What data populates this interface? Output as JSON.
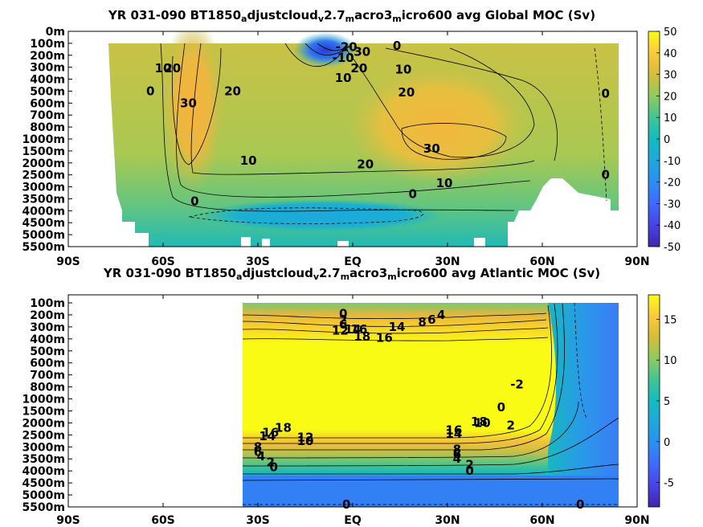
{
  "chart_data": [
    {
      "type": "heatmap",
      "title_parts": [
        "YR 031-090 BT1850",
        "a",
        "djustcloud",
        "v",
        "2.7",
        "m",
        "acro3",
        "m",
        "icro600 avg  Global MOC (Sv)"
      ],
      "x_ticks": [
        "90S",
        "60S",
        "30S",
        "EQ",
        "30N",
        "60N",
        "90N"
      ],
      "y_ticks": [
        "0m",
        "100m",
        "200m",
        "300m",
        "400m",
        "500m",
        "600m",
        "700m",
        "800m",
        "1000m",
        "1500m",
        "2000m",
        "2500m",
        "3000m",
        "3500m",
        "4000m",
        "4500m",
        "5000m",
        "5500m"
      ],
      "xlim": [
        -90,
        90
      ],
      "clim": [
        -50,
        50
      ],
      "colorbar_ticks": [
        "50",
        "40",
        "30",
        "20",
        "10",
        "0",
        "-10",
        "-20",
        "-30",
        "-40",
        "-50"
      ],
      "colormap": "parula",
      "contour_labels": [
        {
          "text": "-20",
          "lat": -2,
          "depth_index": 1.3
        },
        {
          "text": "-10",
          "lat": -3,
          "depth_index": 2.2
        },
        {
          "text": "30",
          "lat": 3,
          "depth_index": 1.7
        },
        {
          "text": "20",
          "lat": 2,
          "depth_index": 3.1
        },
        {
          "text": "10",
          "lat": -3,
          "depth_index": 3.9
        },
        {
          "text": "0",
          "lat": 14,
          "depth_index": 1.2
        },
        {
          "text": "10",
          "lat": 16,
          "depth_index": 3.2
        },
        {
          "text": "20",
          "lat": 17,
          "depth_index": 5.1
        },
        {
          "text": "0",
          "lat": 80,
          "depth_index": 5.2
        },
        {
          "text": "10",
          "lat": -60,
          "depth_index": 3.1
        },
        {
          "text": "20",
          "lat": -57,
          "depth_index": 3.1
        },
        {
          "text": "0",
          "lat": -64,
          "depth_index": 5.0
        },
        {
          "text": "30",
          "lat": -52,
          "depth_index": 6.0
        },
        {
          "text": "20",
          "lat": -38,
          "depth_index": 5.0
        },
        {
          "text": "30",
          "lat": 25,
          "depth_index": 9.8
        },
        {
          "text": "20",
          "lat": 4,
          "depth_index": 11.1
        },
        {
          "text": "10",
          "lat": 29,
          "depth_index": 12.7
        },
        {
          "text": "10",
          "lat": -33,
          "depth_index": 10.8
        },
        {
          "text": "0",
          "lat": -50,
          "depth_index": 14.2
        },
        {
          "text": "0",
          "lat": 19,
          "depth_index": 13.6
        },
        {
          "text": "0",
          "lat": 80,
          "depth_index": 12.0
        }
      ]
    },
    {
      "type": "heatmap",
      "title_parts": [
        "YR 031-090 BT1850",
        "a",
        "djustcloud",
        "v",
        "2.7",
        "m",
        "acro3",
        "m",
        "icro600 avg  Atlantic MOC (Sv)"
      ],
      "x_ticks": [
        "90S",
        "60S",
        "30S",
        "EQ",
        "30N",
        "60N",
        "90N"
      ],
      "y_ticks": [
        "100m",
        "200m",
        "300m",
        "400m",
        "500m",
        "600m",
        "700m",
        "800m",
        "1000m",
        "1500m",
        "2000m",
        "2500m",
        "3000m",
        "3500m",
        "4000m",
        "4500m",
        "5000m",
        "5500m"
      ],
      "xlim": [
        -90,
        90
      ],
      "clim": [
        -8,
        18
      ],
      "colorbar_ticks": [
        "15",
        "10",
        "5",
        "0",
        "-5"
      ],
      "colormap": "parula",
      "contour_labels": [
        {
          "text": "0",
          "lat": -3,
          "depth_index": 0.9
        },
        {
          "text": "2",
          "lat": -3,
          "depth_index": 1.4
        },
        {
          "text": "6",
          "lat": -3,
          "depth_index": 1.8
        },
        {
          "text": "12",
          "lat": -4,
          "depth_index": 2.3
        },
        {
          "text": "14",
          "lat": 0,
          "depth_index": 2.2
        },
        {
          "text": "16",
          "lat": 2,
          "depth_index": 2.2
        },
        {
          "text": "18",
          "lat": 3,
          "depth_index": 2.8
        },
        {
          "text": "14",
          "lat": 14,
          "depth_index": 2.0
        },
        {
          "text": "16",
          "lat": 10,
          "depth_index": 2.9
        },
        {
          "text": "8",
          "lat": 22,
          "depth_index": 1.6
        },
        {
          "text": "6",
          "lat": 25,
          "depth_index": 1.4
        },
        {
          "text": "4",
          "lat": 28,
          "depth_index": 1.0
        },
        {
          "text": "-2",
          "lat": 52,
          "depth_index": 6.8
        },
        {
          "text": "0",
          "lat": 47,
          "depth_index": 8.7
        },
        {
          "text": "2",
          "lat": 50,
          "depth_index": 10.2
        },
        {
          "text": "18",
          "lat": 40,
          "depth_index": 9.9
        },
        {
          "text": "16",
          "lat": 32,
          "depth_index": 10.6
        },
        {
          "text": "10",
          "lat": 41,
          "depth_index": 10.0
        },
        {
          "text": "14",
          "lat": 32,
          "depth_index": 10.9
        },
        {
          "text": "8",
          "lat": 33,
          "depth_index": 12.2
        },
        {
          "text": "6",
          "lat": 33,
          "depth_index": 12.6
        },
        {
          "text": "4",
          "lat": 33,
          "depth_index": 13.0
        },
        {
          "text": "2",
          "lat": 37,
          "depth_index": 13.5
        },
        {
          "text": "0",
          "lat": 37,
          "depth_index": 14.0
        },
        {
          "text": "16",
          "lat": -26,
          "depth_index": 10.8
        },
        {
          "text": "18",
          "lat": -22,
          "depth_index": 10.4
        },
        {
          "text": "14",
          "lat": -27,
          "depth_index": 11.1
        },
        {
          "text": "12",
          "lat": -15,
          "depth_index": 11.2
        },
        {
          "text": "10",
          "lat": -15,
          "depth_index": 11.5
        },
        {
          "text": "8",
          "lat": -30,
          "depth_index": 12.0
        },
        {
          "text": "6",
          "lat": -30,
          "depth_index": 12.4
        },
        {
          "text": "4",
          "lat": -29,
          "depth_index": 12.8
        },
        {
          "text": "2",
          "lat": -26,
          "depth_index": 13.3
        },
        {
          "text": "0",
          "lat": -25,
          "depth_index": 13.7
        },
        {
          "text": "0",
          "lat": -2,
          "depth_index": 16.8
        },
        {
          "text": "0",
          "lat": 72,
          "depth_index": 16.8
        }
      ]
    }
  ]
}
